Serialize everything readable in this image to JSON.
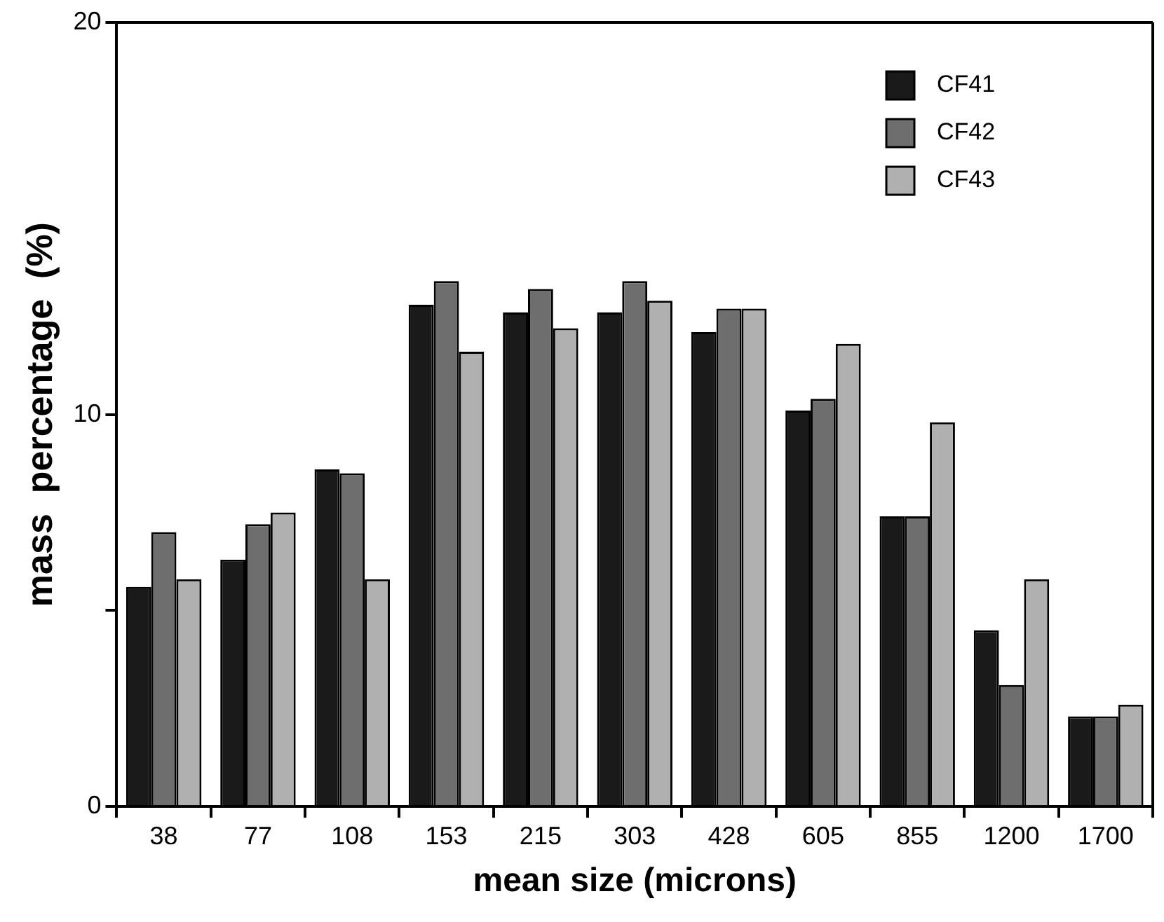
{
  "chart_data": {
    "type": "bar",
    "xlabel": "mean size (microns)",
    "ylabel": "mass  percentage  (%)",
    "categories": [
      "38",
      "77",
      "108",
      "153",
      "215",
      "303",
      "428",
      "605",
      "855",
      "1200",
      "1700"
    ],
    "series": [
      {
        "name": "CF41",
        "color": "#1a1a1a",
        "values": [
          5.6,
          6.3,
          8.6,
          12.8,
          12.6,
          12.6,
          12.1,
          10.1,
          7.4,
          4.5,
          2.3
        ]
      },
      {
        "name": "CF42",
        "color": "#6e6e6e",
        "values": [
          7.0,
          7.2,
          8.5,
          13.4,
          13.2,
          13.4,
          12.7,
          10.4,
          7.4,
          3.1,
          2.3
        ]
      },
      {
        "name": "CF43",
        "color": "#b0b0b0",
        "values": [
          5.8,
          7.5,
          5.8,
          11.6,
          12.2,
          12.9,
          12.7,
          11.8,
          9.8,
          5.8,
          2.6
        ]
      }
    ],
    "ylim": [
      0,
      20
    ],
    "yticks": [
      0,
      {
        "value": 5,
        "label": null
      },
      10,
      20
    ],
    "grid": false,
    "legend": "top right"
  }
}
